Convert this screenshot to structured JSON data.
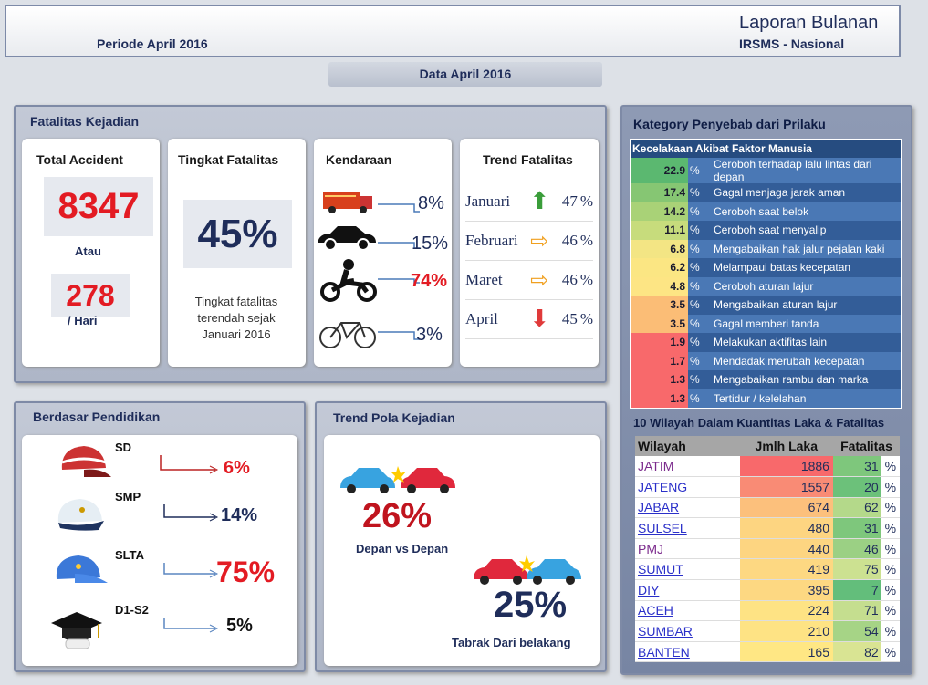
{
  "header": {
    "periode": "Periode April 2016",
    "title": "Laporan Bulanan",
    "subtitle": "IRSMS - Nasional"
  },
  "data_tab": "Data April 2016",
  "fatalitas": {
    "title": "Fatalitas Kejadian",
    "total": {
      "title": "Total Accident",
      "value": "8347",
      "atau": "Atau",
      "per_day": "278",
      "per_day_label": "/ Hari"
    },
    "tingkat": {
      "title": "Tingkat Fatalitas",
      "value": "45%",
      "note": "Tingkat fatalitas terendah sejak Januari 2016"
    },
    "kendaraan": {
      "title": "Kendaraan",
      "items": [
        {
          "icon": "truck-icon",
          "value": "8%"
        },
        {
          "icon": "car-icon",
          "value": "15%"
        },
        {
          "icon": "motorcycle-icon",
          "value": "74%"
        },
        {
          "icon": "bicycle-icon",
          "value": "3%"
        }
      ]
    },
    "trend": {
      "title": "Trend Fatalitas",
      "rows": [
        {
          "month": "Januari",
          "arrow": "up",
          "value": "47",
          "unit": "%"
        },
        {
          "month": "Februari",
          "arrow": "right",
          "value": "46",
          "unit": "%"
        },
        {
          "month": "Maret",
          "arrow": "right",
          "value": "46",
          "unit": "%"
        },
        {
          "month": "April",
          "arrow": "down",
          "value": "45",
          "unit": "%"
        }
      ]
    }
  },
  "pendidikan": {
    "title": "Berdasar Pendidikan",
    "items": [
      {
        "label": "SD",
        "value": "6%",
        "color": "#e31b23"
      },
      {
        "label": "SMP",
        "value": "14%",
        "color": "#1f2d5a"
      },
      {
        "label": "SLTA",
        "value": "75%",
        "color": "#e31b23"
      },
      {
        "label": "D1-S2",
        "value": "5%",
        "color": "#111111"
      }
    ]
  },
  "pola": {
    "title": "Trend Pola Kejadian",
    "a_value": "26%",
    "a_label": "Depan vs Depan",
    "b_value": "25%",
    "b_label": "Tabrak Dari belakang"
  },
  "kategori": {
    "title": "Kategory Penyebab dari Prilaku",
    "table_title": "Kecelakaan Akibat Faktor Manusia",
    "unit": "%",
    "rows": [
      {
        "v": "22.9",
        "l": "Ceroboh terhadap lalu lintas dari depan",
        "c": "#5bb870"
      },
      {
        "v": "17.4",
        "l": "Gagal menjaga jarak aman",
        "c": "#86c673"
      },
      {
        "v": "14.2",
        "l": "Ceroboh saat belok",
        "c": "#a9d277"
      },
      {
        "v": "11.1",
        "l": "Ceroboh saat menyalip",
        "c": "#c7dc7c"
      },
      {
        "v": "6.8",
        "l": "Mengabaikan hak jalur pejalan kaki",
        "c": "#f3e584"
      },
      {
        "v": "6.2",
        "l": "Melampaui batas kecepatan",
        "c": "#fbe683"
      },
      {
        "v": "4.8",
        "l": "Ceroboh aturan lajur",
        "c": "#fde584"
      },
      {
        "v": "3.5",
        "l": "Mengabaikan aturan lajur",
        "c": "#fbbd76"
      },
      {
        "v": "3.5",
        "l": "Gagal memberi tanda",
        "c": "#fbbd76"
      },
      {
        "v": "1.9",
        "l": "Melakukan aktifitas lain",
        "c": "#f8696b"
      },
      {
        "v": "1.7",
        "l": "Mendadak merubah kecepatan",
        "c": "#f8696b"
      },
      {
        "v": "1.3",
        "l": "Mengabaikan rambu dan marka",
        "c": "#f8696b"
      },
      {
        "v": "1.3",
        "l": "Tertidur / kelelahan",
        "c": "#f8696b"
      }
    ]
  },
  "wilayah": {
    "title": "10 Wilayah Dalam Kuantitas Laka & Fatalitas",
    "headers": [
      "Wilayah",
      "Jmlh Laka",
      "Fatalitas"
    ],
    "unit": "%",
    "rows": [
      {
        "n": "JATIM",
        "j": "1886",
        "f": "31",
        "jc": "#f8696b",
        "fc": "#7ec77c",
        "visited": true
      },
      {
        "n": "JATENG",
        "j": "1557",
        "f": "20",
        "jc": "#f98b75",
        "fc": "#6cc17a"
      },
      {
        "n": "JABAR",
        "j": "674",
        "f": "62",
        "jc": "#fcc07c",
        "fc": "#b4d98a"
      },
      {
        "n": "SULSEL",
        "j": "480",
        "f": "31",
        "jc": "#fdd581",
        "fc": "#7ec77c"
      },
      {
        "n": "PMJ",
        "j": "440",
        "f": "46",
        "jc": "#fdd581",
        "fc": "#9bd084",
        "visited": true
      },
      {
        "n": "SUMUT",
        "j": "419",
        "f": "75",
        "jc": "#fdd882",
        "fc": "#cce191"
      },
      {
        "n": "DIY",
        "j": "395",
        "f": "7",
        "jc": "#fdd882",
        "fc": "#63be7b"
      },
      {
        "n": "ACEH",
        "j": "224",
        "f": "71",
        "jc": "#fee384",
        "fc": "#c5de8f"
      },
      {
        "n": "SUMBAR",
        "j": "210",
        "f": "54",
        "jc": "#fee384",
        "fc": "#a6d486"
      },
      {
        "n": "BANTEN",
        "j": "165",
        "f": "82",
        "jc": "#ffe784",
        "fc": "#d9e493"
      }
    ]
  }
}
